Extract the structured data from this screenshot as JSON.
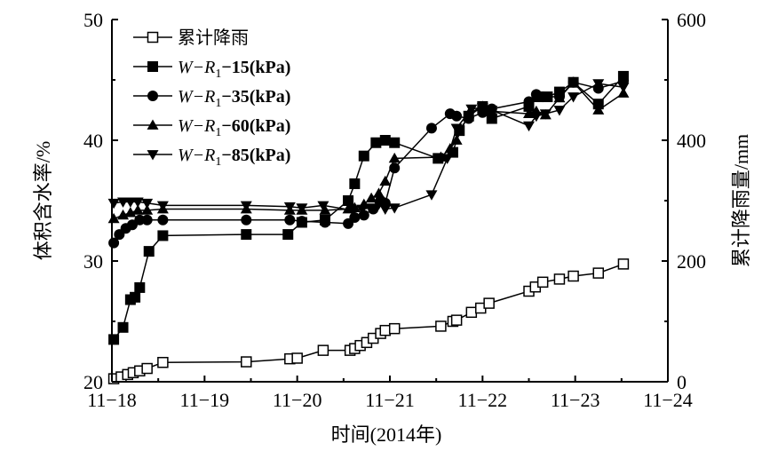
{
  "chart_data": {
    "type": "line",
    "xlabel": "时间(2014年)",
    "ylabel_left": "体积含水率/%",
    "ylabel_right": "累计降雨量/mm",
    "x_tick_labels": [
      "11−18",
      "11−19",
      "11−20",
      "11−21",
      "11−22",
      "11−23",
      "11−24"
    ],
    "xlim": [
      0,
      6
    ],
    "ylim_left": [
      20,
      50
    ],
    "ylim_right": [
      0,
      600
    ],
    "y_left_ticks": [
      20,
      30,
      40,
      50
    ],
    "y_right_ticks": [
      0,
      200,
      400,
      600
    ],
    "legend": [
      {
        "id": "rain",
        "text": "累计降雨",
        "marker": "square-open"
      },
      {
        "id": "s15",
        "prefix": "W−R",
        "sub": "1",
        "suffix": "−15(kPa)",
        "marker": "square-filled"
      },
      {
        "id": "s35",
        "prefix": "W−R",
        "sub": "1",
        "suffix": "−35(kPa)",
        "marker": "circle-filled"
      },
      {
        "id": "s60",
        "prefix": "W−R",
        "sub": "1",
        "suffix": "−60(kPa)",
        "marker": "triangle-up"
      },
      {
        "id": "s85",
        "prefix": "W−R",
        "sub": "1",
        "suffix": "−85(kPa)",
        "marker": "triangle-down"
      }
    ],
    "series": [
      {
        "name": "累计降雨",
        "axis": "right",
        "marker": "square-open",
        "x": [
          0.02,
          0.1,
          0.17,
          0.23,
          0.3,
          0.38,
          0.55,
          1.45,
          1.92,
          2.0,
          2.28,
          2.57,
          2.62,
          2.68,
          2.75,
          2.82,
          2.9,
          2.95,
          3.05,
          3.55,
          3.68,
          3.72,
          3.88,
          3.98,
          4.07,
          4.5,
          4.57,
          4.65,
          4.83,
          4.98,
          5.25,
          5.52
        ],
        "y": [
          5,
          8,
          12,
          15,
          18,
          22,
          32,
          33,
          38,
          39,
          52,
          52,
          55,
          60,
          65,
          72,
          80,
          85,
          88,
          92,
          100,
          102,
          115,
          122,
          130,
          150,
          157,
          165,
          170,
          175,
          180,
          195
        ]
      },
      {
        "name": "W−R1−15(kPa)",
        "axis": "left",
        "marker": "square-filled",
        "x": [
          0.02,
          0.12,
          0.2,
          0.25,
          0.3,
          0.4,
          0.55,
          1.45,
          1.9,
          2.05,
          2.3,
          2.55,
          2.62,
          2.72,
          2.85,
          2.95,
          3.05,
          3.52,
          3.68,
          3.75,
          3.85,
          4.0,
          4.1,
          4.5,
          4.6,
          4.7,
          4.83,
          4.98,
          5.25,
          5.52
        ],
        "y": [
          23.5,
          24.5,
          26.8,
          27,
          27.8,
          30.8,
          32.1,
          32.2,
          32.2,
          33.2,
          33.4,
          35,
          36.4,
          38.7,
          39.8,
          40,
          39.8,
          38.5,
          39,
          40.8,
          42,
          42.8,
          41.8,
          42.8,
          43.6,
          43.6,
          44,
          44.8,
          43,
          45.3
        ]
      },
      {
        "name": "W−R1−35(kPa)",
        "axis": "left",
        "marker": "circle-filled",
        "x": [
          0.02,
          0.08,
          0.15,
          0.22,
          0.3,
          0.38,
          0.55,
          1.45,
          1.92,
          2.05,
          2.3,
          2.55,
          2.62,
          2.72,
          2.82,
          2.9,
          2.95,
          3.05,
          3.45,
          3.65,
          3.72,
          3.85,
          4.0,
          4.1,
          4.5,
          4.58,
          4.65,
          4.83,
          4.98,
          5.25,
          5.52
        ],
        "y": [
          31.5,
          32.2,
          32.7,
          33,
          33.4,
          33.4,
          33.4,
          33.4,
          33.4,
          33.3,
          33.2,
          33.1,
          33.6,
          33.8,
          34.3,
          35,
          34.8,
          37.7,
          41,
          42.2,
          42,
          41.8,
          42.3,
          42.6,
          43.2,
          43.8,
          43.6,
          43.6,
          44.8,
          44.3,
          44.9
        ]
      },
      {
        "name": "W−R1−60(kPa)",
        "axis": "left",
        "marker": "triangle-up",
        "x": [
          0.02,
          0.12,
          0.2,
          0.28,
          0.38,
          0.55,
          1.45,
          1.92,
          2.05,
          2.3,
          2.55,
          2.62,
          2.72,
          2.8,
          2.88,
          2.95,
          3.05,
          3.55,
          3.65,
          3.72,
          3.85,
          4.0,
          4.1,
          4.5,
          4.58,
          4.68,
          4.83,
          4.98,
          5.25,
          5.52
        ],
        "y": [
          33.5,
          33.8,
          34,
          34.2,
          34.2,
          34.3,
          34.3,
          34.2,
          34.2,
          34.2,
          34.3,
          34.4,
          34.7,
          35.2,
          35.6,
          36.6,
          38.5,
          38.6,
          39.3,
          40,
          42.2,
          42.8,
          42.4,
          42.2,
          42.4,
          42.1,
          43.5,
          44.8,
          42.5,
          43.9
        ]
      },
      {
        "name": "W−R1−85(kPa)",
        "axis": "left",
        "marker": "triangle-down",
        "x": [
          0.02,
          0.12,
          0.2,
          0.28,
          0.38,
          0.55,
          1.45,
          1.92,
          2.05,
          2.28,
          2.6,
          2.7,
          2.8,
          2.88,
          2.95,
          3.05,
          3.45,
          3.62,
          3.72,
          3.88,
          4.0,
          4.1,
          4.5,
          4.58,
          4.68,
          4.83,
          4.98,
          5.25,
          5.52
        ],
        "y": [
          34.8,
          34.9,
          34.9,
          34.9,
          34.8,
          34.6,
          34.6,
          34.5,
          34.4,
          34.6,
          34.2,
          34.3,
          34.4,
          34.7,
          34.3,
          34.4,
          35.5,
          38.5,
          41,
          42.6,
          42.7,
          42.5,
          41.2,
          42,
          42.2,
          42.5,
          43.6,
          44.7,
          44.4
        ]
      }
    ]
  }
}
